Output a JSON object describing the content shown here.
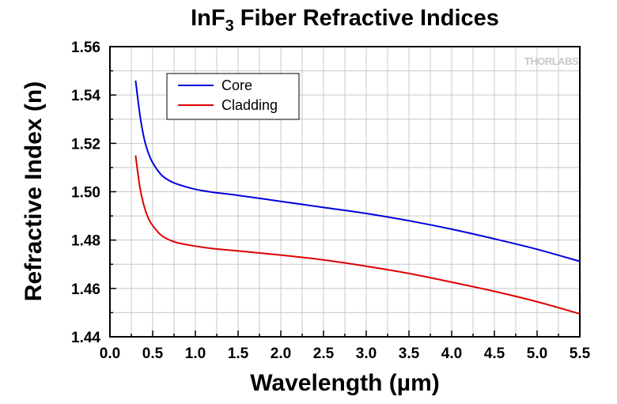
{
  "chart_data": {
    "type": "line",
    "title": {
      "main": "InF",
      "sub": "3",
      "rest": " Fiber Refractive Indices"
    },
    "xlabel": "Wavelength (µm)",
    "ylabel": "Refractive Index (n)",
    "xlim": [
      0.0,
      5.5
    ],
    "ylim": [
      1.44,
      1.56
    ],
    "xticks": [
      "0.0",
      "0.5",
      "1.0",
      "1.5",
      "2.0",
      "2.5",
      "3.0",
      "3.5",
      "4.0",
      "4.5",
      "5.0",
      "5.5"
    ],
    "yticks": [
      "1.44",
      "1.46",
      "1.48",
      "1.50",
      "1.52",
      "1.54",
      "1.56"
    ],
    "grid": true,
    "legend_position": "top-left",
    "watermark": "THORLABS",
    "series": [
      {
        "name": "Core",
        "color": "#0000dd",
        "x": [
          0.3,
          0.35,
          0.4,
          0.45,
          0.5,
          0.6,
          0.7,
          0.8,
          1.0,
          1.2,
          1.5,
          2.0,
          2.5,
          3.0,
          3.5,
          4.0,
          4.5,
          5.0,
          5.5
        ],
        "y": [
          1.546,
          1.532,
          1.522,
          1.516,
          1.512,
          1.507,
          1.5045,
          1.503,
          1.501,
          1.4998,
          1.4985,
          1.496,
          1.4935,
          1.491,
          1.488,
          1.4845,
          1.4805,
          1.4762,
          1.4712
        ]
      },
      {
        "name": "Cladding",
        "color": "#dd0000",
        "x": [
          0.3,
          0.35,
          0.4,
          0.45,
          0.5,
          0.6,
          0.7,
          0.8,
          1.0,
          1.2,
          1.5,
          2.0,
          2.5,
          3.0,
          3.5,
          4.0,
          4.5,
          5.0,
          5.5
        ],
        "y": [
          1.515,
          1.502,
          1.494,
          1.489,
          1.486,
          1.482,
          1.48,
          1.4788,
          1.4775,
          1.4765,
          1.4755,
          1.4738,
          1.4718,
          1.4692,
          1.4662,
          1.4626,
          1.4588,
          1.4545,
          1.4495
        ]
      }
    ]
  }
}
